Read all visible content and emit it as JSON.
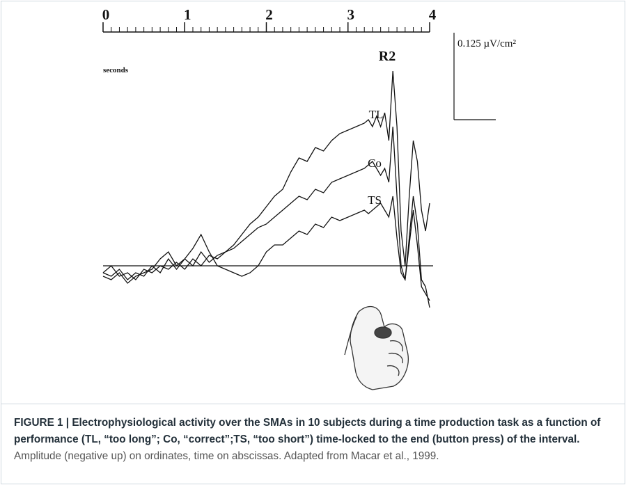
{
  "chart_data": {
    "type": "line",
    "x_label": "seconds",
    "annotation": "R2",
    "x": [
      0,
      0.1,
      0.2,
      0.3,
      0.4,
      0.5,
      0.6,
      0.7,
      0.8,
      0.9,
      1.0,
      1.1,
      1.2,
      1.3,
      1.4,
      1.5,
      1.6,
      1.7,
      1.8,
      1.9,
      2.0,
      2.1,
      2.2,
      2.3,
      2.4,
      2.5,
      2.6,
      2.7,
      2.8,
      2.9,
      3.0,
      3.1,
      3.2,
      3.25,
      3.3,
      3.35,
      3.4,
      3.45,
      3.5,
      3.55,
      3.6,
      3.65,
      3.7,
      3.75,
      3.8,
      3.85,
      3.9,
      3.95,
      4.0
    ],
    "series": [
      {
        "name": "TL",
        "color": "#111111",
        "values": [
          0.01,
          0.015,
          0.005,
          0.02,
          0.01,
          0.015,
          0.0,
          0.01,
          -0.01,
          0.005,
          -0.01,
          0.0,
          -0.02,
          -0.005,
          -0.015,
          -0.02,
          -0.03,
          -0.045,
          -0.06,
          -0.07,
          -0.085,
          -0.1,
          -0.11,
          -0.135,
          -0.155,
          -0.15,
          -0.17,
          -0.165,
          -0.18,
          -0.19,
          -0.195,
          -0.2,
          -0.205,
          -0.21,
          -0.2,
          -0.215,
          -0.2,
          -0.22,
          -0.18,
          -0.28,
          -0.2,
          -0.05,
          0.0,
          -0.1,
          -0.18,
          -0.15,
          -0.08,
          -0.05,
          -0.09
        ]
      },
      {
        "name": "Co",
        "color": "#111111",
        "values": [
          0.01,
          0.0,
          0.015,
          0.01,
          0.02,
          0.005,
          0.01,
          0.0,
          0.005,
          -0.005,
          0.005,
          -0.01,
          0.0,
          -0.015,
          -0.01,
          -0.02,
          -0.025,
          -0.035,
          -0.045,
          -0.055,
          -0.06,
          -0.07,
          -0.08,
          -0.09,
          -0.1,
          -0.095,
          -0.11,
          -0.105,
          -0.12,
          -0.125,
          -0.13,
          -0.135,
          -0.14,
          -0.145,
          -0.15,
          -0.14,
          -0.13,
          -0.14,
          -0.12,
          -0.2,
          -0.1,
          0.0,
          0.02,
          -0.04,
          -0.1,
          -0.06,
          0.02,
          0.03,
          0.06
        ]
      },
      {
        "name": "TS",
        "color": "#111111",
        "values": [
          0.015,
          0.02,
          0.01,
          0.025,
          0.015,
          0.01,
          0.005,
          -0.01,
          -0.02,
          0.0,
          -0.01,
          -0.025,
          -0.045,
          -0.02,
          0.0,
          0.005,
          0.01,
          0.015,
          0.01,
          0.0,
          -0.02,
          -0.03,
          -0.03,
          -0.04,
          -0.05,
          -0.045,
          -0.06,
          -0.055,
          -0.07,
          -0.065,
          -0.07,
          -0.075,
          -0.08,
          -0.075,
          -0.08,
          -0.085,
          -0.09,
          -0.08,
          -0.07,
          -0.1,
          -0.04,
          0.01,
          0.02,
          -0.03,
          -0.08,
          -0.03,
          0.03,
          0.04,
          0.05
        ]
      }
    ],
    "xlim": [
      0,
      4
    ],
    "xticks": [
      0,
      1,
      2,
      3,
      4
    ],
    "ylim": [
      -0.3,
      0.075
    ],
    "y_inverted": true,
    "scale_bar": {
      "value": 0.125,
      "label": "0.125 µV/cm²"
    }
  },
  "caption": {
    "title": "FIGURE 1 | Electrophysiological activity over the SMAs in 10 subjects during a time production task as a function of performance (TL, “too long”; Co, “correct”;TS, “too short”) time-locked to the end (button press) of the interval.",
    "text": "Amplitude (negative up) on ordinates, time on abscissas. Adapted from Macar et al., 1999."
  }
}
